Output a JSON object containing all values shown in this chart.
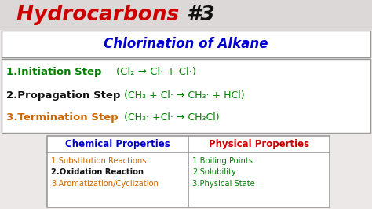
{
  "bg_color": "#ede8e8",
  "title_color_hydro": "#cc0000",
  "title_color_num": "#111111",
  "subtitle_color": "#0000cc",
  "step1_label": "1.Initiation Step ",
  "step1_label_color": "#008000",
  "step1_eq": "(Cl₂ → Cl· + Cl·)",
  "step1_eq_color": "#008000",
  "step2_label": "2.Propagation Step ",
  "step2_label_color": "#111111",
  "step2_eq": "(CH₃ + Cl· → CH₃· + HCl)",
  "step2_eq_color": "#008000",
  "step3_label": "3.Termination Step ",
  "step3_label_color": "#cc6600",
  "step3_eq": "(CH₃· +Cl· → CH₃Cl)",
  "step3_eq_color": "#008000",
  "chem_header": "Chemical Properties",
  "chem_header_color": "#0000cc",
  "phys_header": "Physical Properties",
  "phys_header_color": "#cc0000",
  "chem_items": [
    "1.Substitution Reactions",
    "2.Oxidation Reaction",
    "3.Aromatization/Cyclization"
  ],
  "chem_item_colors": [
    "#cc6600",
    "#111111",
    "#cc6600"
  ],
  "chem_item_bold": [
    false,
    true,
    false
  ],
  "phys_items": [
    "1.Boiling Points",
    "2.Solubility",
    "3.Physical State"
  ],
  "phys_item_colors": [
    "#008000",
    "#008000",
    "#008000"
  ],
  "border_color": "#999999",
  "white": "#ffffff"
}
